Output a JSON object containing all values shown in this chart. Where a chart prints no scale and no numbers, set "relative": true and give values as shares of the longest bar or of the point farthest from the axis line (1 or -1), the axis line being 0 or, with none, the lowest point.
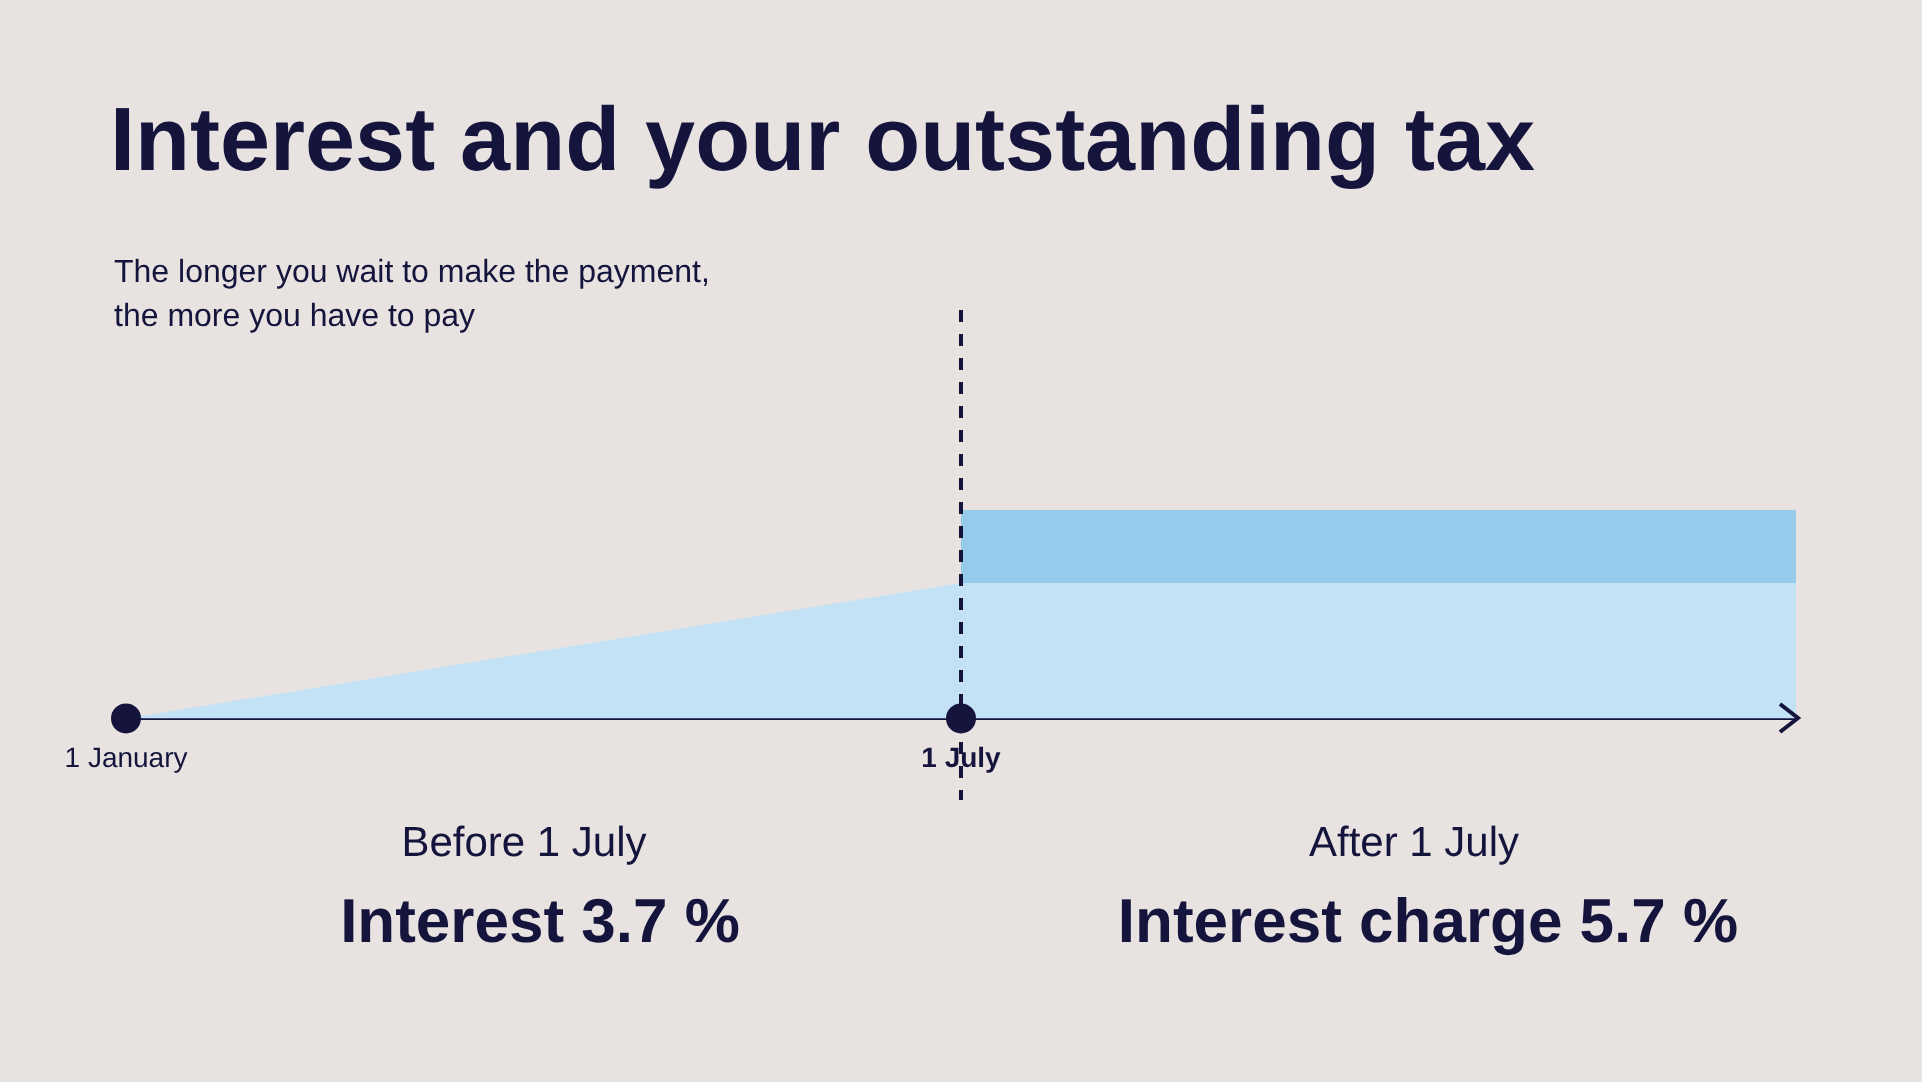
{
  "chart_data": {
    "type": "area",
    "title": "Interest and your outstanding tax",
    "subtitle": "The longer you wait to make the payment,\nthe more you have to pay",
    "categories": [
      "1 January",
      "1 July",
      null
    ],
    "relative": true,
    "stacked": true,
    "grid": false,
    "tick_labels": "x",
    "series": [
      {
        "color": "#c4e2f5",
        "values": [
          0,
          0.65,
          0.65
        ]
      },
      {
        "color": "#96cbeb",
        "values": [
          null,
          0.35,
          0.35
        ]
      },
      {
        "type": "scatter",
        "marker": "circle",
        "color": "#14143c",
        "x": [
          "1 January",
          "1 July"
        ],
        "values": [
          0,
          0
        ]
      }
    ],
    "ref_lines": [
      {
        "axis": "x",
        "value": "1 July",
        "line_style": "dashed",
        "color": "#14143c"
      }
    ],
    "annotations": [
      "Before 1 July",
      "Interest 3.7 %",
      "After 1 July",
      "Interest charge 5.7 %"
    ]
  }
}
